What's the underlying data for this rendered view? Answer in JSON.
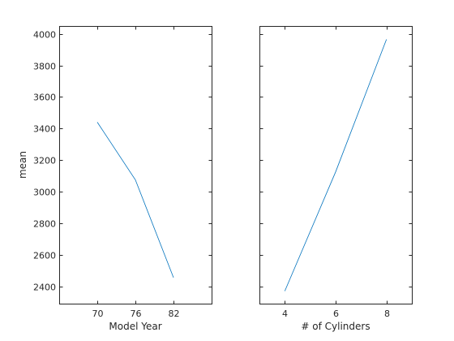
{
  "chart_data": [
    {
      "type": "line",
      "xlabel": "Model Year",
      "ylabel": "mean",
      "x": [
        70,
        76,
        82
      ],
      "xticks": [
        "70",
        "76",
        "82"
      ],
      "xlim": [
        64,
        88
      ],
      "ylim": [
        2290,
        4050
      ],
      "yticks": [
        2400,
        2600,
        2800,
        3000,
        3200,
        3400,
        3600,
        3800,
        4000
      ],
      "grid": false,
      "series": [
        {
          "values": [
            3440,
            3075,
            2455
          ],
          "color": "#0072BD"
        }
      ]
    },
    {
      "type": "line",
      "xlabel": "# of Cylinders",
      "ylabel": "",
      "x": [
        4,
        6,
        8
      ],
      "xticks": [
        "4",
        "6",
        "8"
      ],
      "xlim": [
        3,
        9
      ],
      "ylim": [
        2290,
        4050
      ],
      "yticks": [],
      "grid": false,
      "series": [
        {
          "values": [
            2370,
            3125,
            3965
          ],
          "color": "#0072BD"
        }
      ]
    }
  ]
}
